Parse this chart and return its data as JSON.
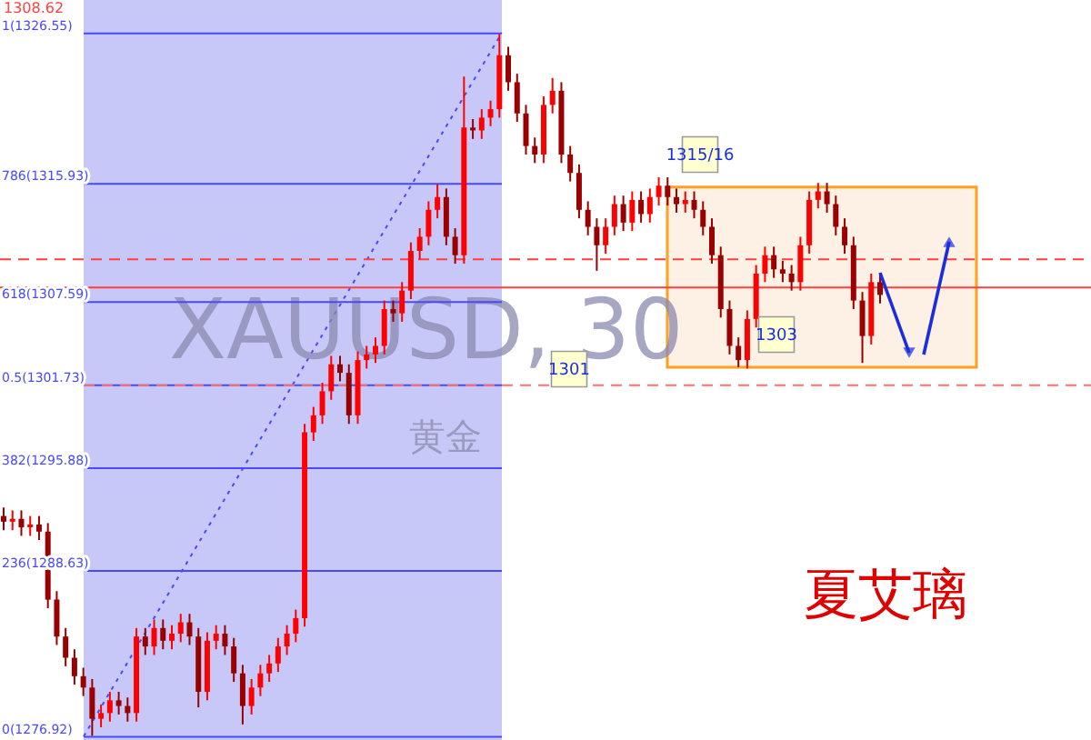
{
  "chart_data": {
    "type": "candlestick",
    "title": "XAUUSD, 30",
    "subtitle": "黄金",
    "categories": [
      null,
      null,
      null,
      null,
      null,
      null,
      null,
      null,
      null,
      null,
      null,
      null,
      null,
      null,
      null,
      null,
      null,
      null,
      null,
      null,
      null,
      null,
      null,
      null,
      null,
      null,
      null,
      null,
      null,
      null,
      null,
      null,
      null,
      null,
      null,
      null,
      null,
      null,
      null,
      null,
      null,
      null,
      null,
      null,
      null,
      null,
      null,
      null,
      null,
      null,
      null,
      null,
      null,
      null,
      null,
      null,
      null,
      null,
      null,
      null,
      null,
      null,
      null,
      null,
      null,
      null,
      null,
      null,
      null,
      null,
      null,
      null,
      null,
      null,
      null,
      null,
      null,
      null,
      null,
      null,
      null,
      null,
      null,
      null,
      null,
      null,
      null,
      null,
      null,
      null,
      null,
      null,
      null,
      null,
      null,
      null,
      null,
      null,
      null,
      null
    ],
    "colors": [
      "#990000",
      "#ff0000",
      "#990000",
      "#ff0000",
      "#990000",
      "#990000",
      "#990000",
      "#990000",
      "#990000",
      "#990000",
      "#990000",
      "#ff0000",
      "#ff0000",
      "#990000",
      "#990000",
      "#ff0000",
      "#990000",
      "#ff0000",
      "#990000",
      "#ff0000",
      "#ff0000",
      "#990000",
      "#990000",
      "#ff0000",
      "#ff0000",
      "#990000",
      "#990000",
      "#990000",
      "#ff0000",
      "#ff0000",
      "#ff0000",
      "#ff0000",
      "#ff0000",
      "#ff0000",
      "#ff0000",
      "#ff0000",
      "#ff0000",
      "#ff0000",
      "#990000",
      "#990000",
      "#ff0000",
      "#ff0000",
      "#ff0000",
      "#ff0000",
      "#990000",
      "#ff0000",
      "#ff0000",
      "#ff0000",
      "#ff0000",
      "#ff0000",
      "#990000",
      "#990000",
      "#ff0000",
      "#990000",
      "#ff0000",
      "#ff0000",
      "#ff0000",
      "#990000",
      "#990000",
      "#990000",
      "#990000",
      "#ff0000",
      "#ff0000",
      "#990000",
      "#990000",
      "#990000",
      "#990000",
      "#990000",
      "#ff0000",
      "#ff0000",
      "#990000",
      "#ff0000",
      "#990000",
      "#ff0000",
      "#ff0000",
      "#990000",
      "#990000",
      "#ff0000",
      "#990000",
      "#990000",
      "#990000",
      "#990000",
      "#990000",
      "#990000",
      "#ff0000",
      "#ff0000",
      "#ff0000",
      "#990000",
      "#990000",
      "#990000",
      "#ff0000",
      "#ff0000",
      "#ff0000",
      "#990000",
      "#990000",
      "#990000",
      "#990000",
      "#990000",
      "#ff0000",
      "#990000"
    ],
    "ohlc": [
      [
        1292.5,
        1293.1,
        1291.5,
        1292.1
      ],
      [
        1292.1,
        1292.9,
        1291.5,
        1292.3
      ],
      [
        1292.3,
        1292.9,
        1291.1,
        1291.7
      ],
      [
        1291.7,
        1292.5,
        1291.1,
        1291.9
      ],
      [
        1291.9,
        1292.5,
        1290.8,
        1291.4
      ],
      [
        1291.4,
        1292.0,
        1286.0,
        1286.6
      ],
      [
        1286.6,
        1287.2,
        1283.4,
        1284.0
      ],
      [
        1284.0,
        1284.6,
        1281.9,
        1282.5
      ],
      [
        1282.5,
        1283.1,
        1280.6,
        1281.2
      ],
      [
        1281.2,
        1281.8,
        1279.8,
        1280.4
      ],
      [
        1280.4,
        1281.0,
        1277.0,
        1278.2
      ],
      [
        1278.2,
        1279.2,
        1277.6,
        1278.6
      ],
      [
        1278.6,
        1280.1,
        1278.0,
        1279.5
      ],
      [
        1279.5,
        1280.1,
        1278.5,
        1279.1
      ],
      [
        1279.1,
        1279.7,
        1278.0,
        1278.6
      ],
      [
        1278.6,
        1284.6,
        1278.0,
        1284.0
      ],
      [
        1284.0,
        1284.6,
        1282.7,
        1283.3
      ],
      [
        1283.3,
        1285.2,
        1282.7,
        1284.6
      ],
      [
        1284.6,
        1285.2,
        1283.1,
        1283.7
      ],
      [
        1283.7,
        1284.8,
        1283.1,
        1284.2
      ],
      [
        1284.2,
        1285.6,
        1283.6,
        1285.0
      ],
      [
        1285.0,
        1285.6,
        1283.4,
        1284.0
      ],
      [
        1284.0,
        1284.6,
        1279.0,
        1280.1
      ],
      [
        1280.1,
        1284.3,
        1279.5,
        1283.7
      ],
      [
        1283.7,
        1284.8,
        1283.1,
        1284.2
      ],
      [
        1284.2,
        1284.8,
        1282.7,
        1283.3
      ],
      [
        1283.3,
        1283.9,
        1280.8,
        1281.4
      ],
      [
        1281.4,
        1282.0,
        1277.8,
        1279.1
      ],
      [
        1279.1,
        1281.0,
        1278.5,
        1280.4
      ],
      [
        1280.4,
        1282.0,
        1279.8,
        1281.4
      ],
      [
        1281.4,
        1282.7,
        1280.8,
        1282.1
      ],
      [
        1282.1,
        1283.9,
        1281.5,
        1283.3
      ],
      [
        1283.3,
        1284.8,
        1282.7,
        1284.2
      ],
      [
        1284.2,
        1285.9,
        1283.6,
        1285.3
      ],
      [
        1285.3,
        1299.0,
        1284.7,
        1298.4
      ],
      [
        1298.4,
        1300.2,
        1297.8,
        1299.6
      ],
      [
        1299.6,
        1301.9,
        1299.0,
        1301.3
      ],
      [
        1301.3,
        1303.8,
        1300.7,
        1303.2
      ],
      [
        1303.2,
        1303.8,
        1302.0,
        1302.6
      ],
      [
        1302.6,
        1303.2,
        1299.0,
        1299.6
      ],
      [
        1299.6,
        1304.1,
        1299.0,
        1303.5
      ],
      [
        1303.5,
        1304.5,
        1302.9,
        1303.9
      ],
      [
        1303.9,
        1305.1,
        1303.3,
        1304.5
      ],
      [
        1304.5,
        1307.7,
        1303.9,
        1307.1
      ],
      [
        1307.1,
        1307.7,
        1306.2,
        1306.8
      ],
      [
        1306.8,
        1309.0,
        1306.2,
        1308.4
      ],
      [
        1308.4,
        1311.8,
        1307.8,
        1311.2
      ],
      [
        1311.2,
        1312.8,
        1310.6,
        1312.2
      ],
      [
        1312.2,
        1314.7,
        1311.6,
        1314.1
      ],
      [
        1314.1,
        1315.9,
        1313.5,
        1315.0
      ],
      [
        1315.0,
        1315.6,
        1311.6,
        1312.2
      ],
      [
        1312.2,
        1312.8,
        1310.3,
        1310.9
      ],
      [
        1310.9,
        1323.5,
        1310.3,
        1319.9
      ],
      [
        1319.9,
        1320.5,
        1319.1,
        1319.7
      ],
      [
        1319.7,
        1321.2,
        1319.1,
        1320.6
      ],
      [
        1320.6,
        1321.8,
        1320.0,
        1321.2
      ],
      [
        1321.2,
        1326.5,
        1320.6,
        1325.0
      ],
      [
        1325.0,
        1325.6,
        1322.5,
        1323.1
      ],
      [
        1323.1,
        1323.7,
        1320.3,
        1320.9
      ],
      [
        1320.9,
        1321.5,
        1318.0,
        1318.6
      ],
      [
        1318.6,
        1319.2,
        1317.4,
        1318.0
      ],
      [
        1318.0,
        1322.1,
        1317.4,
        1321.5
      ],
      [
        1321.5,
        1323.4,
        1320.9,
        1322.5
      ],
      [
        1322.5,
        1323.1,
        1317.4,
        1318.0
      ],
      [
        1318.0,
        1318.6,
        1316.1,
        1316.7
      ],
      [
        1316.7,
        1317.3,
        1313.5,
        1314.1
      ],
      [
        1314.1,
        1314.7,
        1312.3,
        1312.9
      ],
      [
        1312.9,
        1313.5,
        1309.8,
        1311.6
      ],
      [
        1311.6,
        1313.5,
        1311.0,
        1312.9
      ],
      [
        1312.9,
        1315.1,
        1312.3,
        1314.5
      ],
      [
        1314.5,
        1315.1,
        1312.6,
        1313.2
      ],
      [
        1313.2,
        1315.4,
        1312.6,
        1314.8
      ],
      [
        1314.8,
        1315.4,
        1313.2,
        1313.8
      ],
      [
        1313.8,
        1315.6,
        1313.2,
        1315.0
      ],
      [
        1315.0,
        1316.4,
        1314.4,
        1315.8
      ],
      [
        1315.8,
        1316.4,
        1314.4,
        1315.0
      ],
      [
        1315.0,
        1315.6,
        1313.9,
        1314.5
      ],
      [
        1314.5,
        1315.4,
        1313.9,
        1314.8
      ],
      [
        1314.8,
        1315.4,
        1313.5,
        1314.1
      ],
      [
        1314.1,
        1314.7,
        1312.3,
        1312.9
      ],
      [
        1312.9,
        1313.5,
        1310.3,
        1310.9
      ],
      [
        1310.9,
        1311.5,
        1306.5,
        1307.1
      ],
      [
        1307.1,
        1307.7,
        1303.9,
        1304.5
      ],
      [
        1304.5,
        1305.1,
        1303.0,
        1303.5
      ],
      [
        1303.5,
        1307.0,
        1302.9,
        1306.4
      ],
      [
        1306.4,
        1310.2,
        1305.8,
        1309.6
      ],
      [
        1309.6,
        1311.5,
        1309.0,
        1310.9
      ],
      [
        1310.9,
        1311.5,
        1309.3,
        1309.9
      ],
      [
        1309.9,
        1310.5,
        1309.0,
        1309.6
      ],
      [
        1309.6,
        1310.2,
        1308.4,
        1309.0
      ],
      [
        1309.0,
        1312.2,
        1308.4,
        1311.6
      ],
      [
        1311.6,
        1315.4,
        1311.0,
        1314.8
      ],
      [
        1314.8,
        1316.0,
        1314.2,
        1315.4
      ],
      [
        1315.4,
        1316.0,
        1313.9,
        1314.5
      ],
      [
        1314.5,
        1315.1,
        1312.3,
        1312.9
      ],
      [
        1312.9,
        1313.5,
        1311.0,
        1311.6
      ],
      [
        1311.6,
        1312.2,
        1307.1,
        1307.7
      ],
      [
        1307.7,
        1308.3,
        1303.3,
        1305.2
      ],
      [
        1305.2,
        1309.6,
        1304.6,
        1309.0
      ],
      [
        1309.0,
        1309.6,
        1307.5,
        1308.1
      ]
    ],
    "ylim": [
      1276.7,
      1328.9
    ],
    "ref_lines": [
      {
        "axis": "y",
        "value": 1326.55,
        "label": "1(1326.55)",
        "color": "#4848ff",
        "line_style": "solid"
      },
      {
        "axis": "y",
        "value": 1315.93,
        "label": "786(1315.93)",
        "color": "#4848ff",
        "line_style": "solid"
      },
      {
        "axis": "y",
        "value": 1307.59,
        "label": "618(1307.59)",
        "color": "#4848ff",
        "line_style": "solid"
      },
      {
        "axis": "y",
        "value": 1301.73,
        "label": "0.5(1301.73)",
        "color": "#4848ff",
        "line_style": "solid"
      },
      {
        "axis": "y",
        "value": 1295.88,
        "label": "382(1295.88)",
        "color": "#4848ff",
        "line_style": "solid"
      },
      {
        "axis": "y",
        "value": 1288.63,
        "label": "236(1288.63)",
        "color": "#4848ff",
        "line_style": "solid"
      },
      {
        "axis": "y",
        "value": 1276.92,
        "label": "0(1276.92)",
        "color": "#4848ff",
        "line_style": "solid"
      },
      {
        "axis": "y",
        "value": 1308.62,
        "label": "1308.62",
        "color": "#ff4040",
        "line_style": "solid"
      },
      {
        "axis": "y",
        "value": 1301.73,
        "color": "#ff7070",
        "line_style": "dashed"
      },
      {
        "axis": "y",
        "value": 1310.6,
        "color": "#ff4040",
        "line_style": "dashed"
      }
    ],
    "bands": [
      {
        "axis": "y",
        "from": 1303.0,
        "to": 1315.7,
        "color": "#fdf0e4"
      }
    ],
    "annotations": [
      "1315/16",
      "1303",
      "1301",
      "夏艾璃"
    ]
  }
}
